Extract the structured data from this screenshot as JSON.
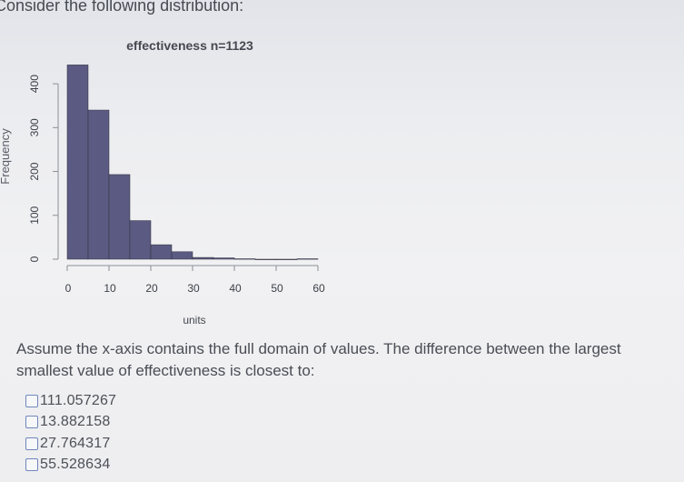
{
  "question": {
    "intro": "Consider the following distribution:",
    "prompt_line1": "Assume the x-axis contains the full domain of values. The difference between the largest",
    "prompt_line2": "smallest value of effectiveness is closest to:"
  },
  "options": [
    {
      "label": "111.057267"
    },
    {
      "label": "13.882158"
    },
    {
      "label": "27.764317"
    },
    {
      "label": "55.528634"
    }
  ],
  "chart_data": {
    "type": "bar",
    "title": "effectiveness n=1123",
    "xlabel": "units",
    "ylabel": "Frequency",
    "xlim": [
      0,
      60
    ],
    "ylim": [
      0,
      450
    ],
    "x_ticks": [
      "0",
      "10",
      "20",
      "30",
      "40",
      "50",
      "60"
    ],
    "y_ticks": [
      "0",
      "100",
      "200",
      "300",
      "400"
    ],
    "bin_edges": [
      0,
      5,
      10,
      15,
      20,
      25,
      30,
      35,
      40,
      45,
      50,
      55,
      60
    ],
    "values": [
      443,
      340,
      193,
      88,
      33,
      17,
      4,
      3,
      1,
      0,
      0,
      1
    ],
    "bar_color": "#5a5a82"
  }
}
